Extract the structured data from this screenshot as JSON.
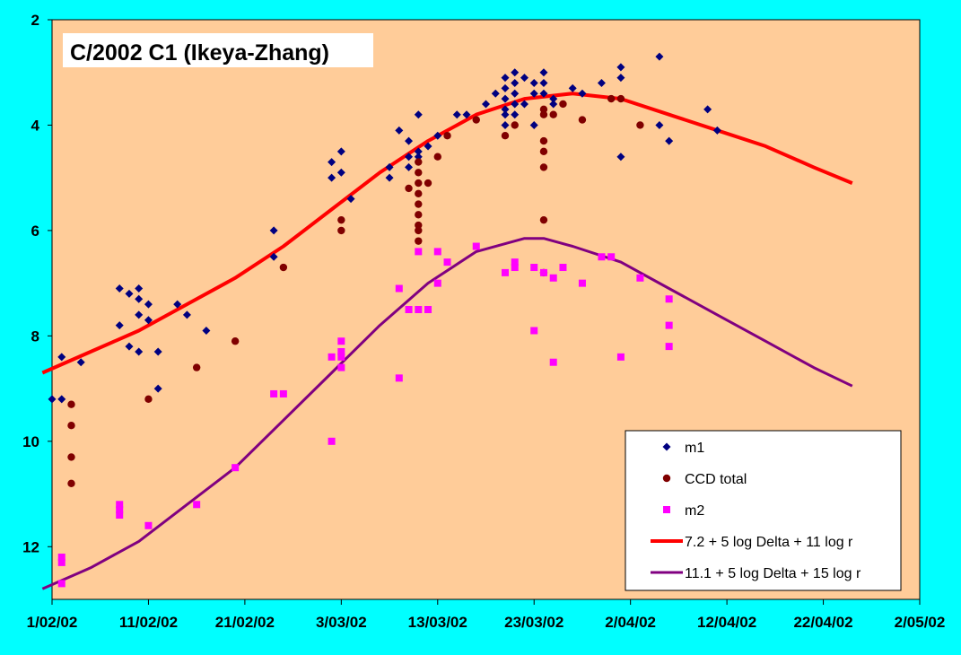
{
  "chart_data": {
    "type": "scatter",
    "title": "C/2002 C1 (Ikeya-Zhang)",
    "xlabel": "",
    "ylabel": "",
    "x_axis": {
      "type": "date",
      "min": "2002-02-01",
      "max": "2002-05-02",
      "tick_labels": [
        "1/02/02",
        "11/02/02",
        "21/02/02",
        "3/03/02",
        "13/03/02",
        "23/03/02",
        "2/04/02",
        "12/04/02",
        "22/04/02",
        "2/05/02"
      ]
    },
    "y_axis": {
      "min": 2,
      "max": 13,
      "reversed": true,
      "tick_labels": [
        "2",
        "4",
        "6",
        "8",
        "10",
        "12"
      ]
    },
    "grid": false,
    "legend_position": "bottom-right",
    "colors": {
      "page_background": "#00ffff",
      "plot_background": "#ffcc99",
      "m1": "#000080",
      "ccd": "#800000",
      "m2": "#ff00ff",
      "fit1": "#ff0000",
      "fit2": "#800080"
    },
    "series": [
      {
        "name": "m1",
        "kind": "points",
        "marker": "diamond",
        "points": [
          [
            "2002-02-01",
            9.2
          ],
          [
            "2002-02-02",
            9.2
          ],
          [
            "2002-02-02",
            8.4
          ],
          [
            "2002-02-04",
            8.5
          ],
          [
            "2002-02-08",
            7.1
          ],
          [
            "2002-02-08",
            7.8
          ],
          [
            "2002-02-09",
            7.2
          ],
          [
            "2002-02-09",
            8.2
          ],
          [
            "2002-02-10",
            7.1
          ],
          [
            "2002-02-10",
            7.3
          ],
          [
            "2002-02-10",
            7.6
          ],
          [
            "2002-02-10",
            8.3
          ],
          [
            "2002-02-11",
            7.4
          ],
          [
            "2002-02-11",
            7.7
          ],
          [
            "2002-02-12",
            8.3
          ],
          [
            "2002-02-12",
            9.0
          ],
          [
            "2002-02-14",
            7.4
          ],
          [
            "2002-02-15",
            7.6
          ],
          [
            "2002-02-17",
            7.9
          ],
          [
            "2002-02-24",
            6.0
          ],
          [
            "2002-02-24",
            6.5
          ],
          [
            "2002-03-02",
            4.7
          ],
          [
            "2002-03-02",
            5.0
          ],
          [
            "2002-03-03",
            4.5
          ],
          [
            "2002-03-03",
            4.9
          ],
          [
            "2002-03-04",
            5.4
          ],
          [
            "2002-03-08",
            4.8
          ],
          [
            "2002-03-08",
            5.0
          ],
          [
            "2002-03-09",
            4.1
          ],
          [
            "2002-03-10",
            4.3
          ],
          [
            "2002-03-10",
            4.6
          ],
          [
            "2002-03-10",
            4.8
          ],
          [
            "2002-03-11",
            3.8
          ],
          [
            "2002-03-11",
            4.5
          ],
          [
            "2002-03-11",
            4.6
          ],
          [
            "2002-03-12",
            4.4
          ],
          [
            "2002-03-13",
            4.2
          ],
          [
            "2002-03-15",
            3.8
          ],
          [
            "2002-03-16",
            3.8
          ],
          [
            "2002-03-18",
            3.6
          ],
          [
            "2002-03-19",
            3.4
          ],
          [
            "2002-03-20",
            3.1
          ],
          [
            "2002-03-20",
            3.3
          ],
          [
            "2002-03-20",
            3.5
          ],
          [
            "2002-03-20",
            3.7
          ],
          [
            "2002-03-20",
            3.8
          ],
          [
            "2002-03-20",
            4.0
          ],
          [
            "2002-03-21",
            3.0
          ],
          [
            "2002-03-21",
            3.2
          ],
          [
            "2002-03-21",
            3.4
          ],
          [
            "2002-03-21",
            3.6
          ],
          [
            "2002-03-21",
            3.8
          ],
          [
            "2002-03-22",
            3.1
          ],
          [
            "2002-03-22",
            3.6
          ],
          [
            "2002-03-23",
            3.2
          ],
          [
            "2002-03-23",
            3.4
          ],
          [
            "2002-03-23",
            4.0
          ],
          [
            "2002-03-24",
            3.0
          ],
          [
            "2002-03-24",
            3.2
          ],
          [
            "2002-03-24",
            3.4
          ],
          [
            "2002-03-25",
            3.5
          ],
          [
            "2002-03-25",
            3.6
          ],
          [
            "2002-03-27",
            3.3
          ],
          [
            "2002-03-28",
            3.4
          ],
          [
            "2002-03-30",
            3.2
          ],
          [
            "2002-04-01",
            2.9
          ],
          [
            "2002-04-01",
            3.1
          ],
          [
            "2002-04-01",
            4.6
          ],
          [
            "2002-04-05",
            2.7
          ],
          [
            "2002-04-05",
            4.0
          ],
          [
            "2002-04-06",
            4.3
          ],
          [
            "2002-04-10",
            3.7
          ],
          [
            "2002-04-11",
            4.1
          ]
        ]
      },
      {
        "name": "CCD total",
        "kind": "points",
        "marker": "circle",
        "points": [
          [
            "2002-02-03",
            9.3
          ],
          [
            "2002-02-03",
            9.7
          ],
          [
            "2002-02-03",
            10.3
          ],
          [
            "2002-02-03",
            10.8
          ],
          [
            "2002-02-11",
            9.2
          ],
          [
            "2002-02-16",
            8.6
          ],
          [
            "2002-02-20",
            8.1
          ],
          [
            "2002-02-25",
            6.7
          ],
          [
            "2002-03-03",
            5.8
          ],
          [
            "2002-03-03",
            6.0
          ],
          [
            "2002-03-10",
            5.2
          ],
          [
            "2002-03-11",
            4.7
          ],
          [
            "2002-03-11",
            4.9
          ],
          [
            "2002-03-11",
            5.1
          ],
          [
            "2002-03-11",
            5.3
          ],
          [
            "2002-03-11",
            5.5
          ],
          [
            "2002-03-11",
            5.7
          ],
          [
            "2002-03-11",
            5.9
          ],
          [
            "2002-03-11",
            6.0
          ],
          [
            "2002-03-11",
            6.2
          ],
          [
            "2002-03-12",
            5.1
          ],
          [
            "2002-03-13",
            4.6
          ],
          [
            "2002-03-14",
            4.2
          ],
          [
            "2002-03-17",
            3.9
          ],
          [
            "2002-03-20",
            4.2
          ],
          [
            "2002-03-21",
            4.0
          ],
          [
            "2002-03-24",
            3.7
          ],
          [
            "2002-03-24",
            3.8
          ],
          [
            "2002-03-24",
            4.3
          ],
          [
            "2002-03-24",
            4.5
          ],
          [
            "2002-03-24",
            4.8
          ],
          [
            "2002-03-24",
            5.8
          ],
          [
            "2002-03-24",
            6.8
          ],
          [
            "2002-03-25",
            3.8
          ],
          [
            "2002-03-26",
            3.6
          ],
          [
            "2002-03-28",
            3.9
          ],
          [
            "2002-03-31",
            3.5
          ],
          [
            "2002-04-01",
            3.5
          ],
          [
            "2002-04-03",
            4.0
          ]
        ]
      },
      {
        "name": "m2",
        "kind": "points",
        "marker": "square",
        "points": [
          [
            "2002-02-02",
            12.2
          ],
          [
            "2002-02-02",
            12.3
          ],
          [
            "2002-02-02",
            12.7
          ],
          [
            "2002-02-08",
            11.2
          ],
          [
            "2002-02-08",
            11.3
          ],
          [
            "2002-02-08",
            11.4
          ],
          [
            "2002-02-11",
            11.6
          ],
          [
            "2002-02-16",
            11.2
          ],
          [
            "2002-02-20",
            10.5
          ],
          [
            "2002-02-24",
            9.1
          ],
          [
            "2002-02-25",
            9.1
          ],
          [
            "2002-03-02",
            10.0
          ],
          [
            "2002-03-02",
            8.4
          ],
          [
            "2002-03-03",
            8.1
          ],
          [
            "2002-03-03",
            8.3
          ],
          [
            "2002-03-03",
            8.4
          ],
          [
            "2002-03-03",
            8.6
          ],
          [
            "2002-03-09",
            8.8
          ],
          [
            "2002-03-09",
            7.1
          ],
          [
            "2002-03-10",
            7.5
          ],
          [
            "2002-03-11",
            6.4
          ],
          [
            "2002-03-11",
            7.5
          ],
          [
            "2002-03-12",
            7.5
          ],
          [
            "2002-03-13",
            6.4
          ],
          [
            "2002-03-13",
            7.0
          ],
          [
            "2002-03-14",
            6.6
          ],
          [
            "2002-03-17",
            6.3
          ],
          [
            "2002-03-20",
            6.8
          ],
          [
            "2002-03-21",
            6.6
          ],
          [
            "2002-03-21",
            6.7
          ],
          [
            "2002-03-23",
            6.7
          ],
          [
            "2002-03-23",
            7.9
          ],
          [
            "2002-03-24",
            6.8
          ],
          [
            "2002-03-25",
            6.9
          ],
          [
            "2002-03-25",
            8.5
          ],
          [
            "2002-03-26",
            6.7
          ],
          [
            "2002-03-28",
            7.0
          ],
          [
            "2002-03-30",
            6.5
          ],
          [
            "2002-03-31",
            6.5
          ],
          [
            "2002-04-01",
            8.4
          ],
          [
            "2002-04-03",
            6.9
          ],
          [
            "2002-04-06",
            7.3
          ],
          [
            "2002-04-06",
            7.8
          ],
          [
            "2002-04-06",
            8.2
          ]
        ]
      },
      {
        "name": "7.2 + 5 log Delta + 11 log r",
        "kind": "line",
        "points": [
          [
            "2002-01-31",
            8.7
          ],
          [
            "2002-02-05",
            8.3
          ],
          [
            "2002-02-10",
            7.9
          ],
          [
            "2002-02-15",
            7.4
          ],
          [
            "2002-02-20",
            6.9
          ],
          [
            "2002-02-25",
            6.3
          ],
          [
            "2002-03-02",
            5.6
          ],
          [
            "2002-03-07",
            4.9
          ],
          [
            "2002-03-12",
            4.3
          ],
          [
            "2002-03-17",
            3.8
          ],
          [
            "2002-03-22",
            3.5
          ],
          [
            "2002-03-27",
            3.4
          ],
          [
            "2002-04-01",
            3.5
          ],
          [
            "2002-04-06",
            3.8
          ],
          [
            "2002-04-11",
            4.1
          ],
          [
            "2002-04-16",
            4.4
          ],
          [
            "2002-04-21",
            4.8
          ],
          [
            "2002-04-25",
            5.1
          ]
        ]
      },
      {
        "name": "11.1 + 5 log Delta + 15 log r",
        "kind": "line",
        "points": [
          [
            "2002-01-31",
            12.8
          ],
          [
            "2002-02-05",
            12.4
          ],
          [
            "2002-02-10",
            11.9
          ],
          [
            "2002-02-15",
            11.2
          ],
          [
            "2002-02-20",
            10.5
          ],
          [
            "2002-02-25",
            9.6
          ],
          [
            "2002-03-02",
            8.7
          ],
          [
            "2002-03-07",
            7.8
          ],
          [
            "2002-03-12",
            7.0
          ],
          [
            "2002-03-17",
            6.4
          ],
          [
            "2002-03-22",
            6.15
          ],
          [
            "2002-03-24",
            6.15
          ],
          [
            "2002-03-27",
            6.3
          ],
          [
            "2002-04-01",
            6.6
          ],
          [
            "2002-04-06",
            7.1
          ],
          [
            "2002-04-11",
            7.6
          ],
          [
            "2002-04-16",
            8.1
          ],
          [
            "2002-04-21",
            8.6
          ],
          [
            "2002-04-25",
            8.95
          ]
        ]
      }
    ]
  }
}
